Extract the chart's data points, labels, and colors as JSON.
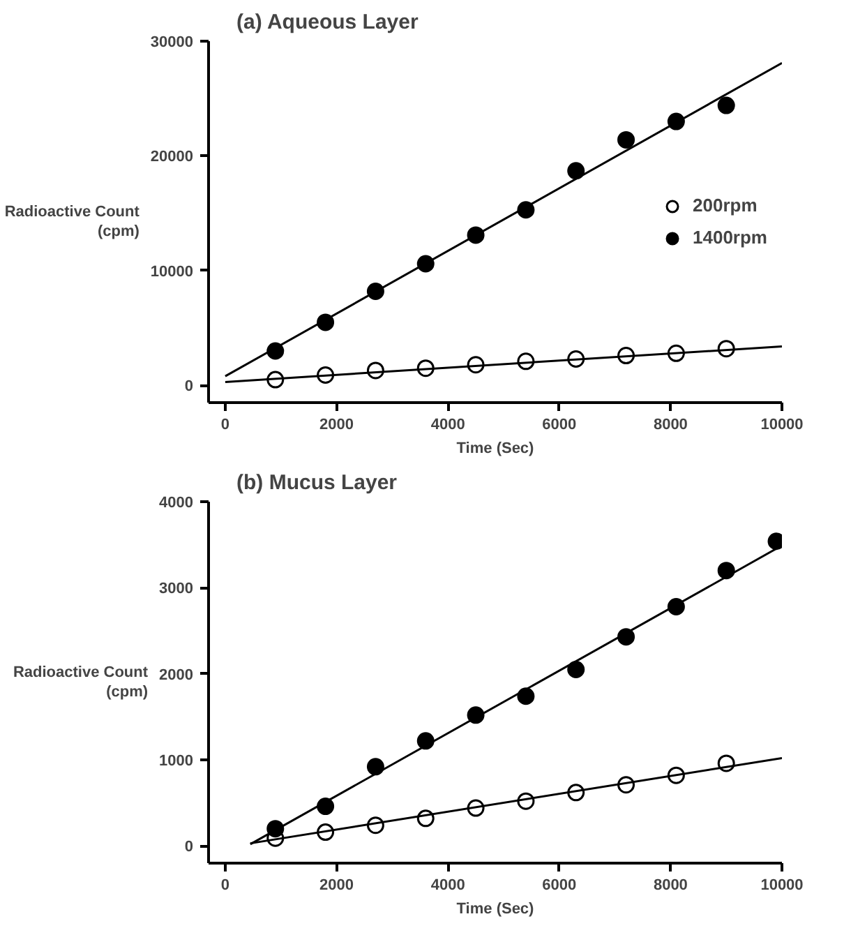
{
  "chart_data": [
    {
      "type": "scatter",
      "title": "(a) Aqueous Layer",
      "xlabel": "Time (Sec)",
      "ylabel": "Radioactive Count (cpm)",
      "x": [
        900,
        1800,
        2700,
        3600,
        4500,
        5400,
        6300,
        7200,
        8100,
        9000
      ],
      "series": [
        {
          "name": "200rpm",
          "color": "#ffffff",
          "values": [
            500,
            900,
            1300,
            1500,
            1800,
            2100,
            2300,
            2600,
            2800,
            3200
          ]
        },
        {
          "name": "1400rpm",
          "color": "#000000",
          "values": [
            3000,
            5500,
            8200,
            10600,
            13100,
            15300,
            18700,
            21400,
            23000,
            24400
          ]
        },
        {
          "type": "line",
          "marker": "none",
          "color": "#000000",
          "x": [
            0,
            10000
          ],
          "values": [
            300,
            3400
          ]
        },
        {
          "type": "line",
          "marker": "none",
          "color": "#000000",
          "x": [
            0,
            10000
          ],
          "values": [
            800,
            28100
          ]
        }
      ],
      "xlim": [
        -300,
        10000
      ],
      "ylim": [
        -1500,
        30000
      ],
      "xticks": [
        0,
        2000,
        4000,
        6000,
        8000,
        10000
      ],
      "yticks": [
        0,
        10000,
        20000,
        30000
      ],
      "marker": "circle",
      "legend": "right",
      "grid": false
    },
    {
      "type": "scatter",
      "title": "(b) Mucus Layer",
      "xlabel": "Time (Sec)",
      "ylabel": "Radioactive Count (cpm)",
      "x": [
        900,
        1800,
        2700,
        3600,
        4500,
        5400,
        6300,
        7200,
        8100,
        9000,
        9900
      ],
      "series": [
        {
          "color": "#ffffff",
          "values": [
            90,
            160,
            240,
            320,
            440,
            520,
            620,
            710,
            820,
            960,
            null
          ]
        },
        {
          "color": "#000000",
          "values": [
            200,
            460,
            920,
            1220,
            1520,
            1740,
            2050,
            2430,
            2780,
            3200,
            3540
          ]
        },
        {
          "type": "line",
          "marker": "none",
          "color": "#000000",
          "x": [
            450,
            10000
          ],
          "values": [
            30,
            1020
          ]
        },
        {
          "type": "line",
          "marker": "none",
          "color": "#000000",
          "x": [
            450,
            10000
          ],
          "values": [
            20,
            3490
          ]
        }
      ],
      "xlim": [
        -300,
        10000
      ],
      "ylim": [
        -200,
        4000
      ],
      "xticks": [
        0,
        2000,
        4000,
        6000,
        8000,
        10000
      ],
      "yticks": [
        0,
        1000,
        2000,
        3000,
        4000
      ],
      "marker": "circle",
      "grid": false
    }
  ]
}
